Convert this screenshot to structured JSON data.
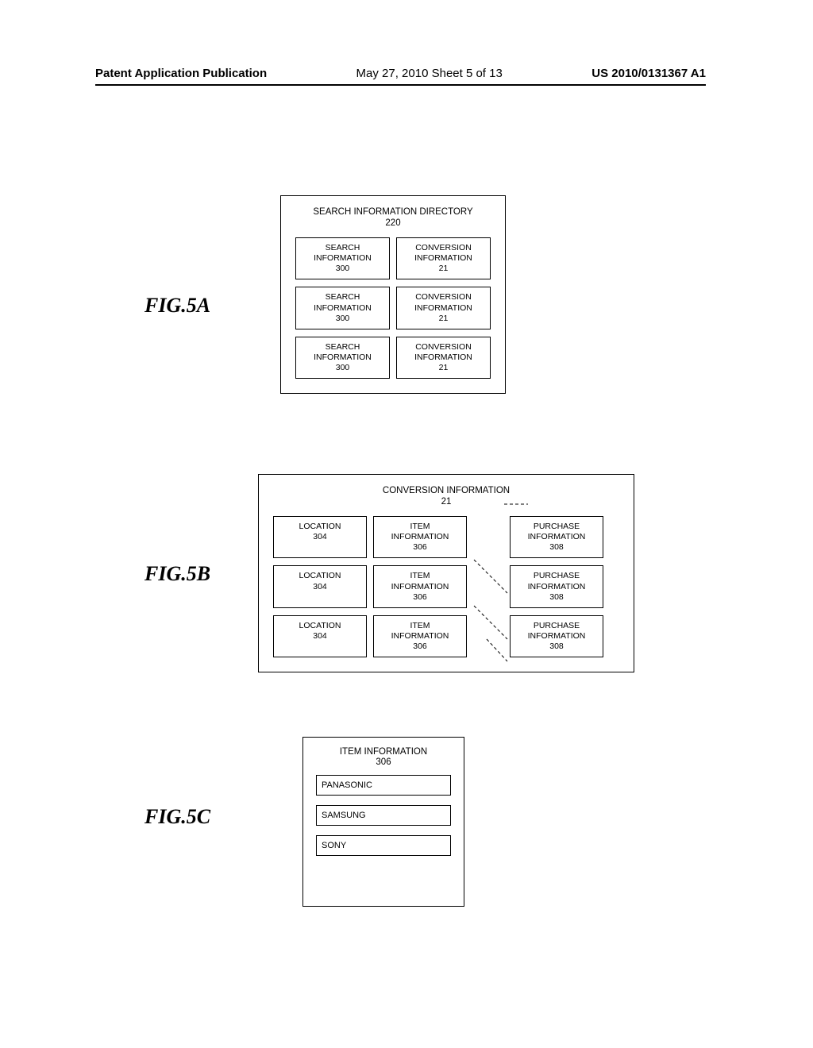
{
  "header": {
    "publication": "Patent Application Publication",
    "date": "May 27, 2010  Sheet 5 of 13",
    "number": "US 2010/0131367 A1"
  },
  "fig5a": {
    "label": "FIG.5A",
    "title": "SEARCH INFORMATION DIRECTORY",
    "title_num": "220",
    "rows": [
      {
        "left": "SEARCH\nINFORMATION\n300",
        "right": "CONVERSION\nINFORMATION\n21"
      },
      {
        "left": "SEARCH\nINFORMATION\n300",
        "right": "CONVERSION\nINFORMATION\n21"
      },
      {
        "left": "SEARCH\nINFORMATION\n300",
        "right": "CONVERSION\nINFORMATION\n21"
      }
    ]
  },
  "fig5b": {
    "label": "FIG.5B",
    "title": "CONVERSION INFORMATION",
    "title_num": "21",
    "rows": [
      {
        "c1": "LOCATION\n304",
        "c2": "ITEM\nINFORMATION\n306",
        "c3": "PURCHASE\nINFORMATION\n308"
      },
      {
        "c1": "LOCATION\n304",
        "c2": "ITEM\nINFORMATION\n306",
        "c3": "PURCHASE\nINFORMATION\n308"
      },
      {
        "c1": "LOCATION\n304",
        "c2": "ITEM\nINFORMATION\n306",
        "c3": "PURCHASE\nINFORMATION\n308"
      }
    ]
  },
  "fig5c": {
    "label": "FIG.5C",
    "title": "ITEM INFORMATION",
    "title_num": "306",
    "items": [
      "PANASONIC",
      "SAMSUNG",
      "SONY"
    ]
  },
  "colors": {
    "background": "#ffffff",
    "stroke": "#000000",
    "text": "#000000"
  }
}
